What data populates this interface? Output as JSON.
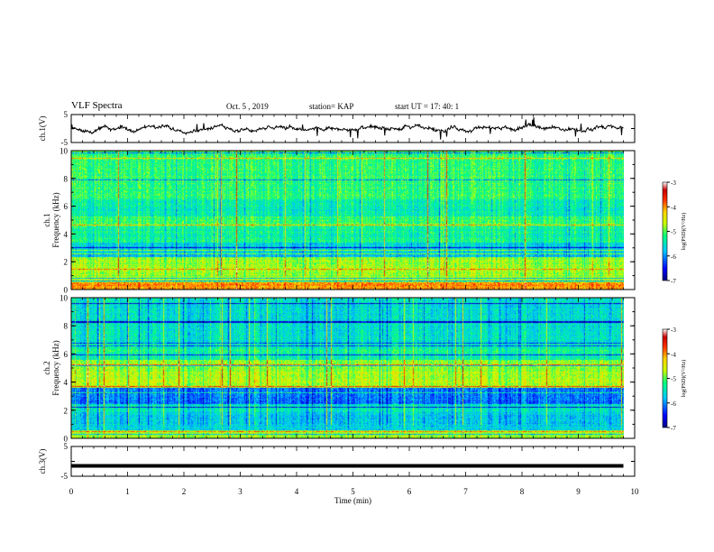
{
  "header": {
    "title": "VLF Spectra",
    "date": "Oct. 5  , 2019",
    "station": "station= KAP",
    "start": "start  UT  =   17: 40: 1"
  },
  "chart_data": [
    {
      "type": "line",
      "panel": "ch1-waveform",
      "ylabel": "ch.1(V)",
      "yticks": [
        "5",
        "-5"
      ],
      "ylim": [
        -5,
        5
      ],
      "xlim": [
        0,
        9.8
      ],
      "description_values": "noisy waveform roughly between -2 and 2 V"
    },
    {
      "type": "heatmap",
      "panel": "ch1-spectrogram",
      "ylabel": "Frequency (kHz)",
      "ylabel_prefix": "ch.1",
      "yticks": [
        "0",
        "2",
        "4",
        "6",
        "8",
        "10"
      ],
      "ylim": [
        0,
        10
      ],
      "xlim": [
        0,
        9.8
      ],
      "colorbar": {
        "label": "log(PSD)(V²/Hz)",
        "ticks": [
          "-3",
          "-4",
          "-5",
          "-6",
          "-7"
        ],
        "range": [
          -7,
          -3
        ]
      }
    },
    {
      "type": "heatmap",
      "panel": "ch2-spectrogram",
      "ylabel": "Frequency (kHz)",
      "ylabel_prefix": "ch.2",
      "yticks": [
        "0",
        "2",
        "4",
        "6",
        "8",
        "10"
      ],
      "ylim": [
        0,
        10
      ],
      "xlim": [
        0,
        9.8
      ],
      "colorbar": {
        "label": "log(PSD)(V²/Hz)",
        "ticks": [
          "-3",
          "-4",
          "-5",
          "-6",
          "-7"
        ],
        "range": [
          -7,
          -3
        ]
      }
    },
    {
      "type": "line",
      "panel": "ch3-waveform",
      "ylabel": "ch.3(V)",
      "yticks": [
        "5",
        "-5"
      ],
      "ylim": [
        -5,
        5
      ],
      "xlim": [
        0,
        9.8
      ],
      "values_constant": -1.5
    }
  ],
  "xaxis": {
    "label": "Time  (min)",
    "ticks": [
      "0",
      "1",
      "2",
      "3",
      "4",
      "5",
      "6",
      "7",
      "8",
      "9",
      "10"
    ],
    "xlim": [
      0,
      10
    ]
  },
  "colors": {
    "colormap": [
      "#00007f",
      "#0000ff",
      "#00c8ff",
      "#00ff80",
      "#c8ff00",
      "#ffd000",
      "#ff3000",
      "#c80000",
      "#ffffff"
    ]
  }
}
